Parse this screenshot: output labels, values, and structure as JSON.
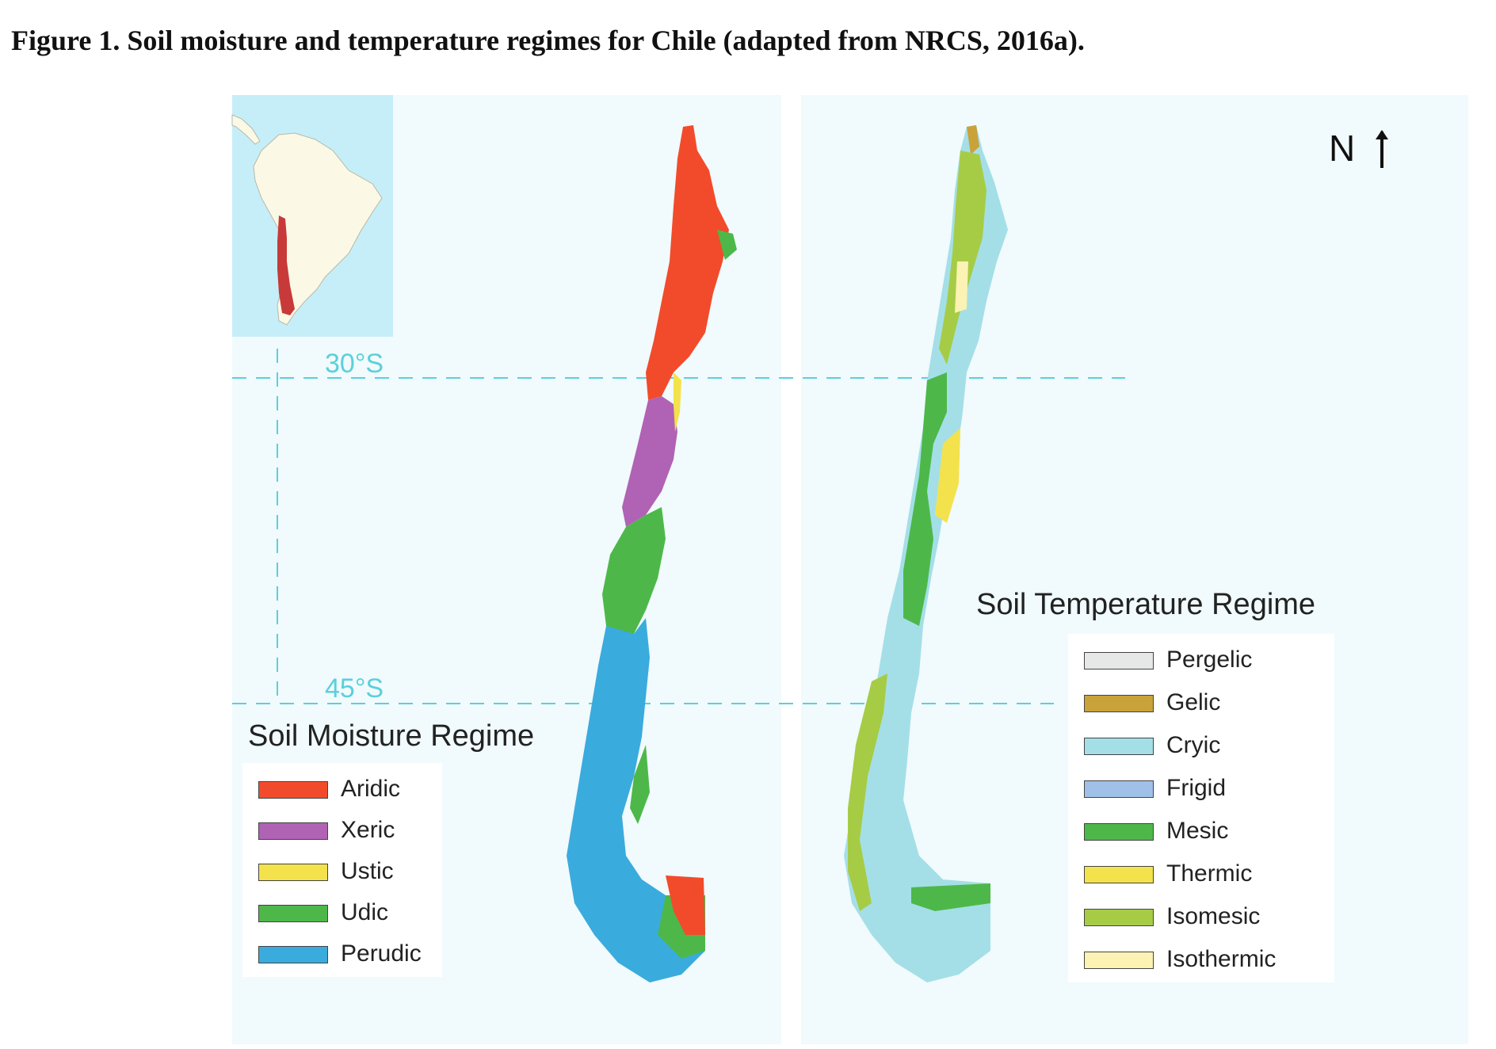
{
  "caption": "Figure 1. Soil moisture and temperature regimes for Chile (adapted from NRCS, 2016a).",
  "gridlines": {
    "lat30": "30°S",
    "lat45": "45°S"
  },
  "north_label": "N",
  "moisture_legend": {
    "title": "Soil Moisture Regime",
    "items": [
      {
        "label": "Aridic",
        "color": "#f24b2b"
      },
      {
        "label": "Xeric",
        "color": "#b062b5"
      },
      {
        "label": "Ustic",
        "color": "#f3e24c"
      },
      {
        "label": "Udic",
        "color": "#4db849"
      },
      {
        "label": "Perudic",
        "color": "#3aabdd"
      }
    ]
  },
  "temperature_legend": {
    "title": "Soil Temperature Regime",
    "items": [
      {
        "label": "Pergelic",
        "color": "#e6e8e8"
      },
      {
        "label": "Gelic",
        "color": "#c9a23a"
      },
      {
        "label": "Cryic",
        "color": "#a4dfe8"
      },
      {
        "label": "Frigid",
        "color": "#a0c0e8"
      },
      {
        "label": "Mesic",
        "color": "#4db849"
      },
      {
        "label": "Thermic",
        "color": "#f3e24c"
      },
      {
        "label": "Isomesic",
        "color": "#a6cc46"
      },
      {
        "label": "Isothermic",
        "color": "#fbf2b3"
      }
    ]
  },
  "colors": {
    "background": "#f1fafc",
    "inset_ocean": "#c5eef8",
    "inset_land": "#fbf9e6",
    "gridline": "#5ad0dc"
  }
}
